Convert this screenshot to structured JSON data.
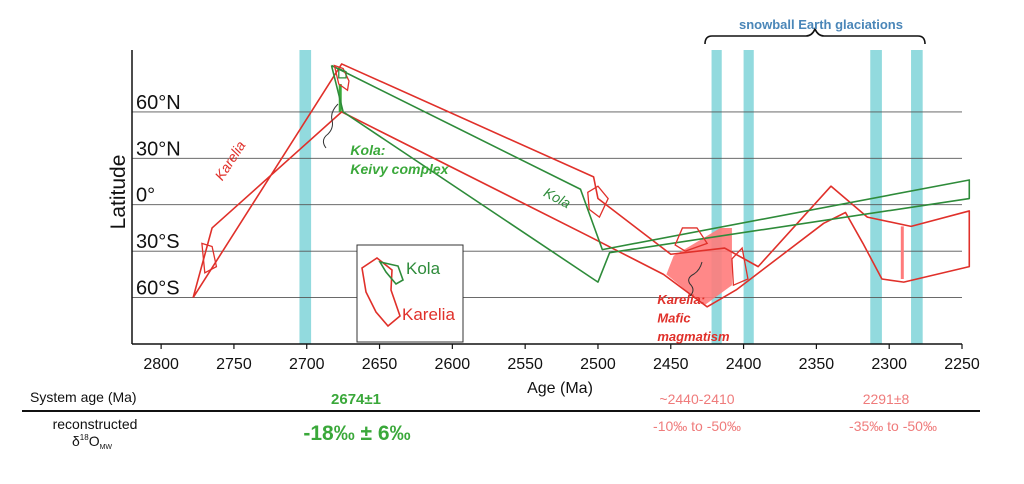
{
  "colors": {
    "karelia": "#e0302a",
    "kola": "#2e8b3a",
    "glaciation": "#7fd3d8",
    "grid": "#555555",
    "bold_green": "#3aa83a",
    "pink_text": "#ef7b7b",
    "mafic_fill": "#ff7b7b",
    "glaciation_label": "#4a86b8"
  },
  "chart_data": {
    "type": "line",
    "xlabel": "Age (Ma)",
    "ylabel": "Latitude",
    "xlim": [
      2820,
      2250
    ],
    "x_ticks": [
      {
        "value": 2800,
        "label": "2800"
      },
      {
        "value": 2750,
        "label": "2750"
      },
      {
        "value": 2700,
        "label": "2700"
      },
      {
        "value": 2650,
        "label": "2650"
      },
      {
        "value": 2600,
        "label": "2600"
      },
      {
        "value": 2550,
        "label": "2550"
      },
      {
        "value": 2500,
        "label": "2500"
      },
      {
        "value": 2450,
        "label": "2450"
      },
      {
        "value": 2400,
        "label": "2400"
      },
      {
        "value": 2350,
        "label": "2350"
      },
      {
        "value": 2300,
        "label": "2300"
      },
      {
        "value": 2250,
        "label": "2250"
      }
    ],
    "y_ticks": [
      {
        "value": 60,
        "label": "60°N"
      },
      {
        "value": 30,
        "label": "30°N"
      },
      {
        "value": 0,
        "label": "0°"
      },
      {
        "value": -30,
        "label": "30°S"
      },
      {
        "value": -60,
        "label": "60°S"
      }
    ],
    "glaciation_bands": [
      {
        "from": 2705,
        "to": 2697
      },
      {
        "from": 2422,
        "to": 2415
      },
      {
        "from": 2400,
        "to": 2393
      },
      {
        "from": 2313,
        "to": 2305
      },
      {
        "from": 2285,
        "to": 2277
      }
    ],
    "glaciation_label": "snowball Earth glaciations",
    "series": [
      {
        "name": "Karelia",
        "color_key": "karelia",
        "outline": [
          [
            2778,
            -60
          ],
          [
            2676,
            91
          ],
          [
            2503,
            18
          ],
          [
            2500,
            4
          ],
          [
            2450,
            -32
          ],
          [
            2413,
            -28
          ],
          [
            2390,
            -40
          ],
          [
            2340,
            12
          ],
          [
            2315,
            -8
          ],
          [
            2285,
            -14
          ],
          [
            2245,
            -4
          ],
          [
            2245,
            -40
          ],
          [
            2290,
            -50
          ],
          [
            2305,
            -48
          ],
          [
            2318,
            -25
          ],
          [
            2330,
            -5
          ],
          [
            2345,
            -12
          ],
          [
            2405,
            -55
          ],
          [
            2425,
            -66
          ],
          [
            2455,
            -45
          ],
          [
            2507,
            -20
          ],
          [
            2676,
            60
          ],
          [
            2765,
            -15
          ],
          [
            2778,
            -60
          ]
        ]
      },
      {
        "name": "Kola",
        "color_key": "kola",
        "outline": [
          [
            2683,
            90
          ],
          [
            2512,
            10
          ],
          [
            2497,
            -29
          ],
          [
            2245,
            16
          ],
          [
            2245,
            4
          ],
          [
            2492,
            -31
          ],
          [
            2500,
            -50
          ],
          [
            2675,
            60
          ],
          [
            2683,
            90
          ]
        ]
      }
    ],
    "annotations": [
      {
        "text": "Karelia",
        "series": "Karelia",
        "x": 2758,
        "y": 15
      },
      {
        "text": "Kola",
        "series": "Kola",
        "x": 2538,
        "y": 6
      },
      {
        "text": "Kola:",
        "series": "Kola",
        "x": 2670,
        "y": 32
      },
      {
        "text": "Keivy complex",
        "series": "Kola",
        "x": 2670,
        "y": 20
      },
      {
        "text": "Karelia:",
        "series": "Karelia",
        "x": 2440,
        "y": -64
      },
      {
        "text": "Mafic",
        "series": "Karelia",
        "x": 2440,
        "y": -76
      },
      {
        "text": "magmatism",
        "series": "Karelia",
        "x": 2440,
        "y": -88
      }
    ],
    "legend": {
      "position": "bottom-center inset",
      "entries": [
        {
          "label": "Kola",
          "color_key": "kola"
        },
        {
          "label": "Karelia",
          "color_key": "karelia"
        }
      ]
    }
  },
  "table": {
    "row1_label": "System age (Ma)",
    "row2_label_line1": "reconstructed",
    "row2_label_line2_main": "δ",
    "row2_label_line2_sup": "18",
    "row2_label_line2_o": "O",
    "row2_label_line2_sub": "MW",
    "col1_age": "2674±1",
    "col1_delta": "-18‰ ± 6‰",
    "col2_age": "~2440-2410",
    "col2_delta": "-10‰ to -50‰",
    "col3_age": "2291±8",
    "col3_delta": "-35‰ to -50‰"
  }
}
